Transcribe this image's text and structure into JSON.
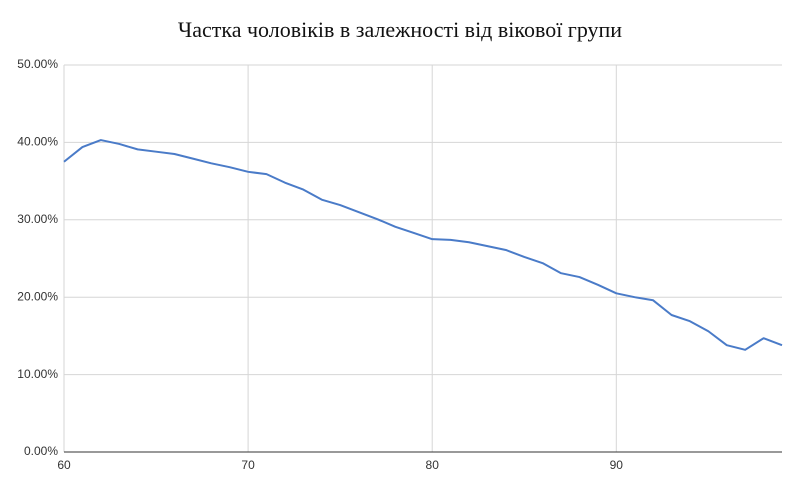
{
  "chart_data": {
    "type": "line",
    "title": "Частка чоловіків в залежності від вікової групи",
    "x": [
      60,
      61,
      62,
      63,
      64,
      65,
      66,
      67,
      68,
      69,
      70,
      71,
      72,
      73,
      74,
      75,
      76,
      77,
      78,
      79,
      80,
      81,
      82,
      83,
      84,
      85,
      86,
      87,
      88,
      89,
      90,
      91,
      92,
      93,
      94,
      95,
      96,
      97,
      98,
      99
    ],
    "series": [
      {
        "color": "#4a7bc8",
        "values": [
          37.5,
          39.4,
          40.3,
          39.8,
          39.1,
          38.8,
          38.5,
          37.9,
          37.3,
          36.8,
          36.2,
          35.9,
          34.8,
          33.9,
          32.6,
          31.9,
          31.0,
          30.1,
          29.1,
          28.3,
          27.5,
          27.4,
          27.1,
          26.6,
          26.1,
          25.2,
          24.4,
          23.1,
          22.6,
          21.6,
          20.5,
          20.0,
          19.6,
          17.7,
          16.9,
          15.6,
          13.8,
          13.2,
          14.7,
          13.8
        ]
      }
    ],
    "xlim": [
      60,
      99
    ],
    "xticks": [
      60,
      70,
      80,
      90
    ],
    "ylim": [
      0,
      50
    ],
    "yticks": [
      {
        "value": 0,
        "label": "0.00%"
      },
      {
        "value": 10,
        "label": "10.00%"
      },
      {
        "value": 20,
        "label": "20.00%"
      },
      {
        "value": 30,
        "label": "30.00%"
      },
      {
        "value": 40,
        "label": "40.00%"
      },
      {
        "value": 50,
        "label": "50.00%"
      }
    ],
    "grid": true
  }
}
